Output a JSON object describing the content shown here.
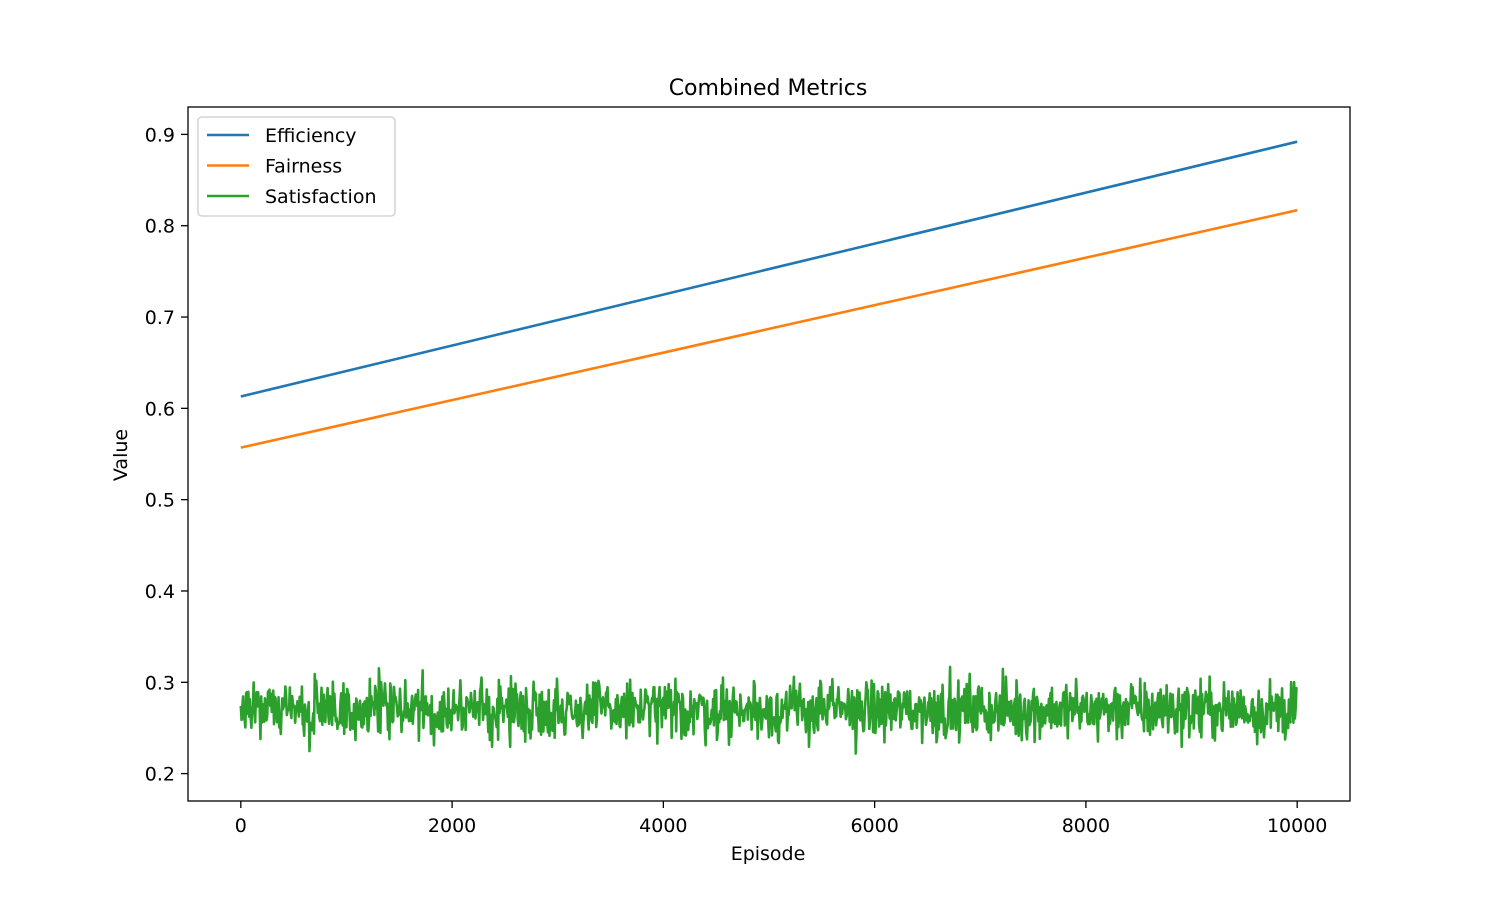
{
  "chart_data": {
    "type": "line",
    "title": "Combined Metrics",
    "xlabel": "Episode",
    "ylabel": "Value",
    "xlim": [
      -500,
      10500
    ],
    "ylim": [
      0.17,
      0.93
    ],
    "xticks": [
      0,
      2000,
      4000,
      6000,
      8000,
      10000
    ],
    "yticks": [
      0.2,
      0.3,
      0.4,
      0.5,
      0.6,
      0.7,
      0.8,
      0.9
    ],
    "grid": false,
    "legend_position": "top-left",
    "series": [
      {
        "name": "Efficiency",
        "color": "#1f77b4",
        "x": [
          0,
          10000
        ],
        "y": [
          0.613,
          0.892
        ]
      },
      {
        "name": "Fairness",
        "color": "#ff7f0e",
        "x": [
          0,
          10000
        ],
        "y": [
          0.557,
          0.817
        ]
      },
      {
        "name": "Satisfaction",
        "color": "#2ca02c",
        "x_range": [
          0,
          10000
        ],
        "mean": 0.27,
        "min": 0.2,
        "max": 0.345
      }
    ]
  }
}
